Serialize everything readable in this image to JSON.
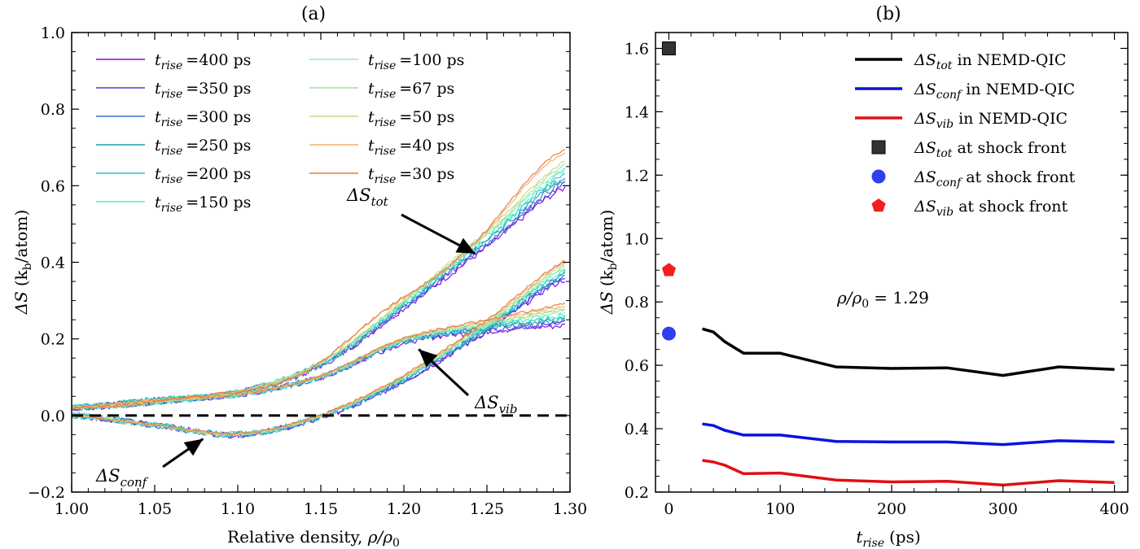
{
  "chart_data": [
    {
      "panel": "(a)",
      "type": "line",
      "xlabel_text": "Relative density, ",
      "xlabel_sym": "ρ/ρ",
      "xlabel_sub": "0",
      "ylabel_sym": "ΔS",
      "ylabel_unit": "(k",
      "ylabel_unit_sub": "b",
      "ylabel_unit_end": "/atom)",
      "xlim": [
        1.0,
        1.3
      ],
      "ylim": [
        -0.2,
        1.0
      ],
      "xticks": [
        "1.00",
        "1.05",
        "1.10",
        "1.15",
        "1.20",
        "1.25",
        "1.30"
      ],
      "yticks": [
        "−0.2",
        "0.0",
        "0.2",
        "0.4",
        "0.6",
        "0.8",
        "1.0"
      ],
      "reference_line": {
        "y": 0.0,
        "style": "dashed"
      },
      "legend_prefix": "t",
      "legend_sub": "rise",
      "legend_unit": "ps",
      "series": [
        {
          "name": "400",
          "color": "#8a00f0"
        },
        {
          "name": "350",
          "color": "#4b3fd8"
        },
        {
          "name": "300",
          "color": "#3c72d4"
        },
        {
          "name": "250",
          "color": "#1aa3b0"
        },
        {
          "name": "200",
          "color": "#22c6c0"
        },
        {
          "name": "150",
          "color": "#55e6d2"
        },
        {
          "name": "100",
          "color": "#8df2b6"
        },
        {
          "name": "67",
          "color": "#9fe39a"
        },
        {
          "name": "50",
          "color": "#c8d88a"
        },
        {
          "name": "40",
          "color": "#f0b070"
        },
        {
          "name": "30",
          "color": "#e87a3e"
        }
      ],
      "curves": {
        "tot": {
          "x": [
            1.0,
            1.05,
            1.1,
            1.15,
            1.2,
            1.25,
            1.3
          ],
          "y": [
            0.02,
            0.035,
            0.06,
            0.13,
            0.28,
            0.44,
            0.6
          ]
        },
        "vib": {
          "x": [
            1.0,
            1.05,
            1.1,
            1.15,
            1.2,
            1.25,
            1.3
          ],
          "y": [
            0.02,
            0.04,
            0.055,
            0.1,
            0.19,
            0.22,
            0.235
          ]
        },
        "conf": {
          "x": [
            1.0,
            1.05,
            1.1,
            1.15,
            1.2,
            1.25,
            1.3
          ],
          "y": [
            0.0,
            -0.025,
            -0.05,
            -0.005,
            0.09,
            0.22,
            0.36
          ]
        }
      },
      "annotations": {
        "tot": {
          "sym": "ΔS",
          "sub": "tot",
          "point": [
            1.24,
            0.41
          ]
        },
        "vib": {
          "sym": "ΔS",
          "sub": "vib",
          "point": [
            1.205,
            0.19
          ]
        },
        "conf": {
          "sym": "ΔS",
          "sub": "conf",
          "point": [
            1.085,
            -0.04
          ]
        }
      }
    },
    {
      "panel": "(b)",
      "type": "line",
      "xlabel_sym": "t",
      "xlabel_sub": "rise",
      "xlabel_unit": "(ps)",
      "ylabel_sym": "ΔS",
      "ylabel_unit": "(k",
      "ylabel_unit_sub": "b",
      "ylabel_unit_end": "/atom)",
      "xlim": [
        -12,
        412
      ],
      "ylim": [
        0.2,
        1.65
      ],
      "xticks": [
        "0",
        "100",
        "200",
        "300",
        "400"
      ],
      "yticks": [
        "0.2",
        "0.4",
        "0.6",
        "0.8",
        "1.0",
        "1.2",
        "1.4",
        "1.6"
      ],
      "annotation_text": "ρ/ρ",
      "annotation_sub": "0",
      "annotation_value": "= 1.29",
      "annotation_color": "#2f8a1f",
      "x": [
        30,
        40,
        50,
        67,
        100,
        150,
        200,
        250,
        300,
        350,
        400
      ],
      "series": [
        {
          "sub": "tot",
          "suffix": "in NEMD-QIC",
          "color": "#000000",
          "values": [
            0.715,
            0.705,
            0.675,
            0.638,
            0.638,
            0.595,
            0.59,
            0.592,
            0.568,
            0.595,
            0.587
          ]
        },
        {
          "sub": "conf",
          "suffix": "in NEMD-QIC",
          "color": "#0a12e0",
          "values": [
            0.415,
            0.41,
            0.395,
            0.38,
            0.38,
            0.36,
            0.358,
            0.358,
            0.35,
            0.362,
            0.358
          ]
        },
        {
          "sub": "vib",
          "suffix": "in NEMD-QIC",
          "color": "#e01010",
          "values": [
            0.3,
            0.295,
            0.285,
            0.258,
            0.26,
            0.238,
            0.232,
            0.234,
            0.222,
            0.236,
            0.23
          ]
        }
      ],
      "markers": [
        {
          "sub": "tot",
          "suffix": "at shock front",
          "shape": "square",
          "color": "#333333",
          "x": 0,
          "y": 1.6
        },
        {
          "sub": "conf",
          "suffix": "at shock front",
          "shape": "circle",
          "color": "#2f3ff0",
          "x": 0,
          "y": 0.7
        },
        {
          "sub": "vib",
          "suffix": "at shock front",
          "shape": "pentagon",
          "color": "#f02020",
          "x": 0,
          "y": 0.9
        }
      ],
      "legend_sym": "ΔS"
    }
  ]
}
